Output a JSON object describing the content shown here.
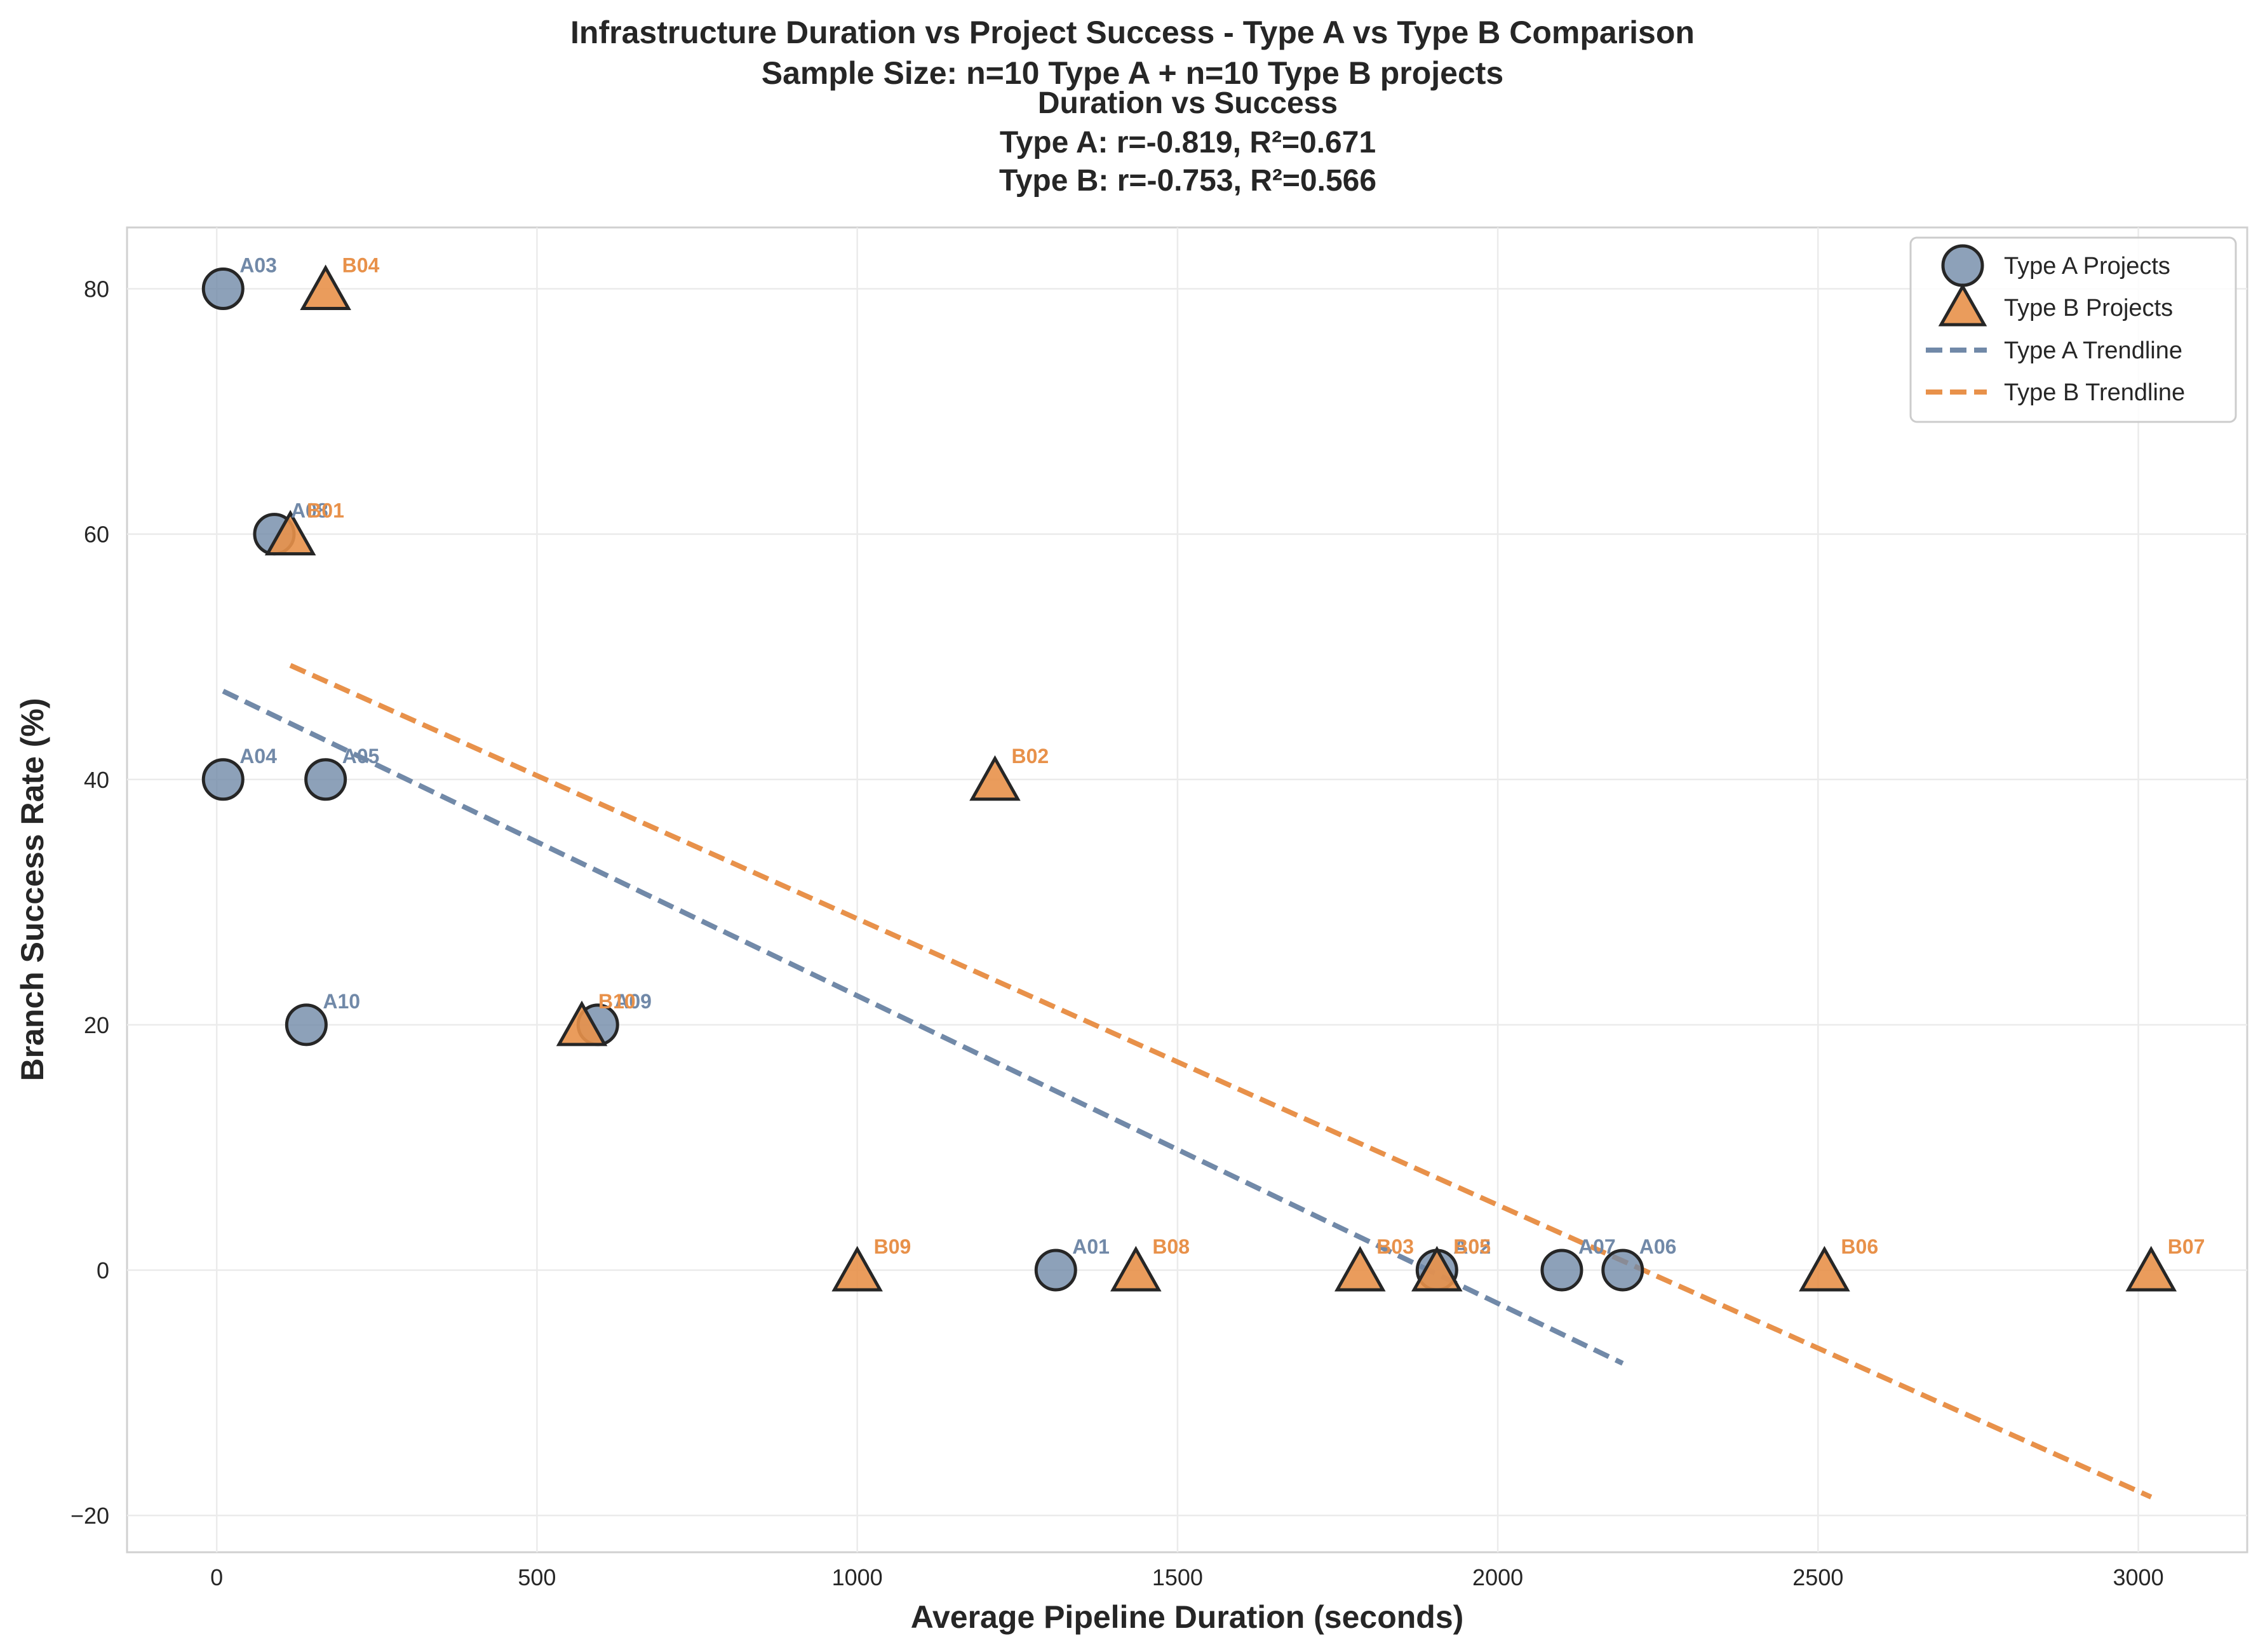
{
  "chart_data": {
    "type": "scatter",
    "suptitle": [
      "Infrastructure Duration vs Project Success - Type A vs Type B Comparison",
      "Sample Size: n=10 Type A + n=10 Type B projects"
    ],
    "title": [
      "Duration vs Success",
      "Type A: r=-0.819, R²=0.671",
      "Type B: r=-0.753, R²=0.566"
    ],
    "xlabel": "Average Pipeline Duration (seconds)",
    "ylabel": "Branch Success Rate (%)",
    "xlim": [
      -140,
      3170
    ],
    "ylim": [
      -23,
      85
    ],
    "xticks": [
      0,
      500,
      1000,
      1500,
      2000,
      2500,
      3000
    ],
    "xtick_labels": [
      "0",
      "500",
      "1000",
      "1500",
      "2000",
      "2500",
      "3000"
    ],
    "yticks": [
      -20,
      0,
      20,
      40,
      60,
      80
    ],
    "ytick_labels": [
      "−20",
      "0",
      "20",
      "40",
      "60",
      "80"
    ],
    "grid": true,
    "legend_position": "top-right",
    "colors": {
      "type_a": "#7189a8",
      "type_b": "#e8914a",
      "edge": "#262626"
    },
    "series": [
      {
        "name": "Type A Projects",
        "marker": "circle",
        "points": [
          {
            "label": "A01",
            "x": 1310,
            "y": 0
          },
          {
            "label": "A02",
            "x": 1905,
            "y": 0
          },
          {
            "label": "A03",
            "x": 10,
            "y": 80
          },
          {
            "label": "A04",
            "x": 10,
            "y": 40
          },
          {
            "label": "A05",
            "x": 170,
            "y": 40
          },
          {
            "label": "A06",
            "x": 2195,
            "y": 0
          },
          {
            "label": "A07",
            "x": 2100,
            "y": 0
          },
          {
            "label": "A08",
            "x": 90,
            "y": 60
          },
          {
            "label": "A09",
            "x": 595,
            "y": 20
          },
          {
            "label": "A10",
            "x": 140,
            "y": 20
          }
        ]
      },
      {
        "name": "Type B Projects",
        "marker": "triangle",
        "points": [
          {
            "label": "B01",
            "x": 115,
            "y": 60
          },
          {
            "label": "B02",
            "x": 1215,
            "y": 40
          },
          {
            "label": "B03",
            "x": 1785,
            "y": 0
          },
          {
            "label": "B04",
            "x": 170,
            "y": 80
          },
          {
            "label": "B05",
            "x": 1905,
            "y": 0
          },
          {
            "label": "B06",
            "x": 2510,
            "y": 0
          },
          {
            "label": "B07",
            "x": 3020,
            "y": 0
          },
          {
            "label": "B08",
            "x": 1435,
            "y": 0
          },
          {
            "label": "B09",
            "x": 1000,
            "y": 0
          },
          {
            "label": "B10",
            "x": 570,
            "y": 20
          }
        ]
      }
    ],
    "trendlines": [
      {
        "name": "Type A Trendline",
        "x": [
          10,
          2195
        ],
        "y": [
          47.2,
          -7.6
        ]
      },
      {
        "name": "Type B Trendline",
        "x": [
          115,
          3020
        ],
        "y": [
          49.3,
          -18.5
        ]
      }
    ],
    "legend": [
      "Type A Projects",
      "Type B Projects",
      "Type A Trendline",
      "Type B Trendline"
    ]
  }
}
